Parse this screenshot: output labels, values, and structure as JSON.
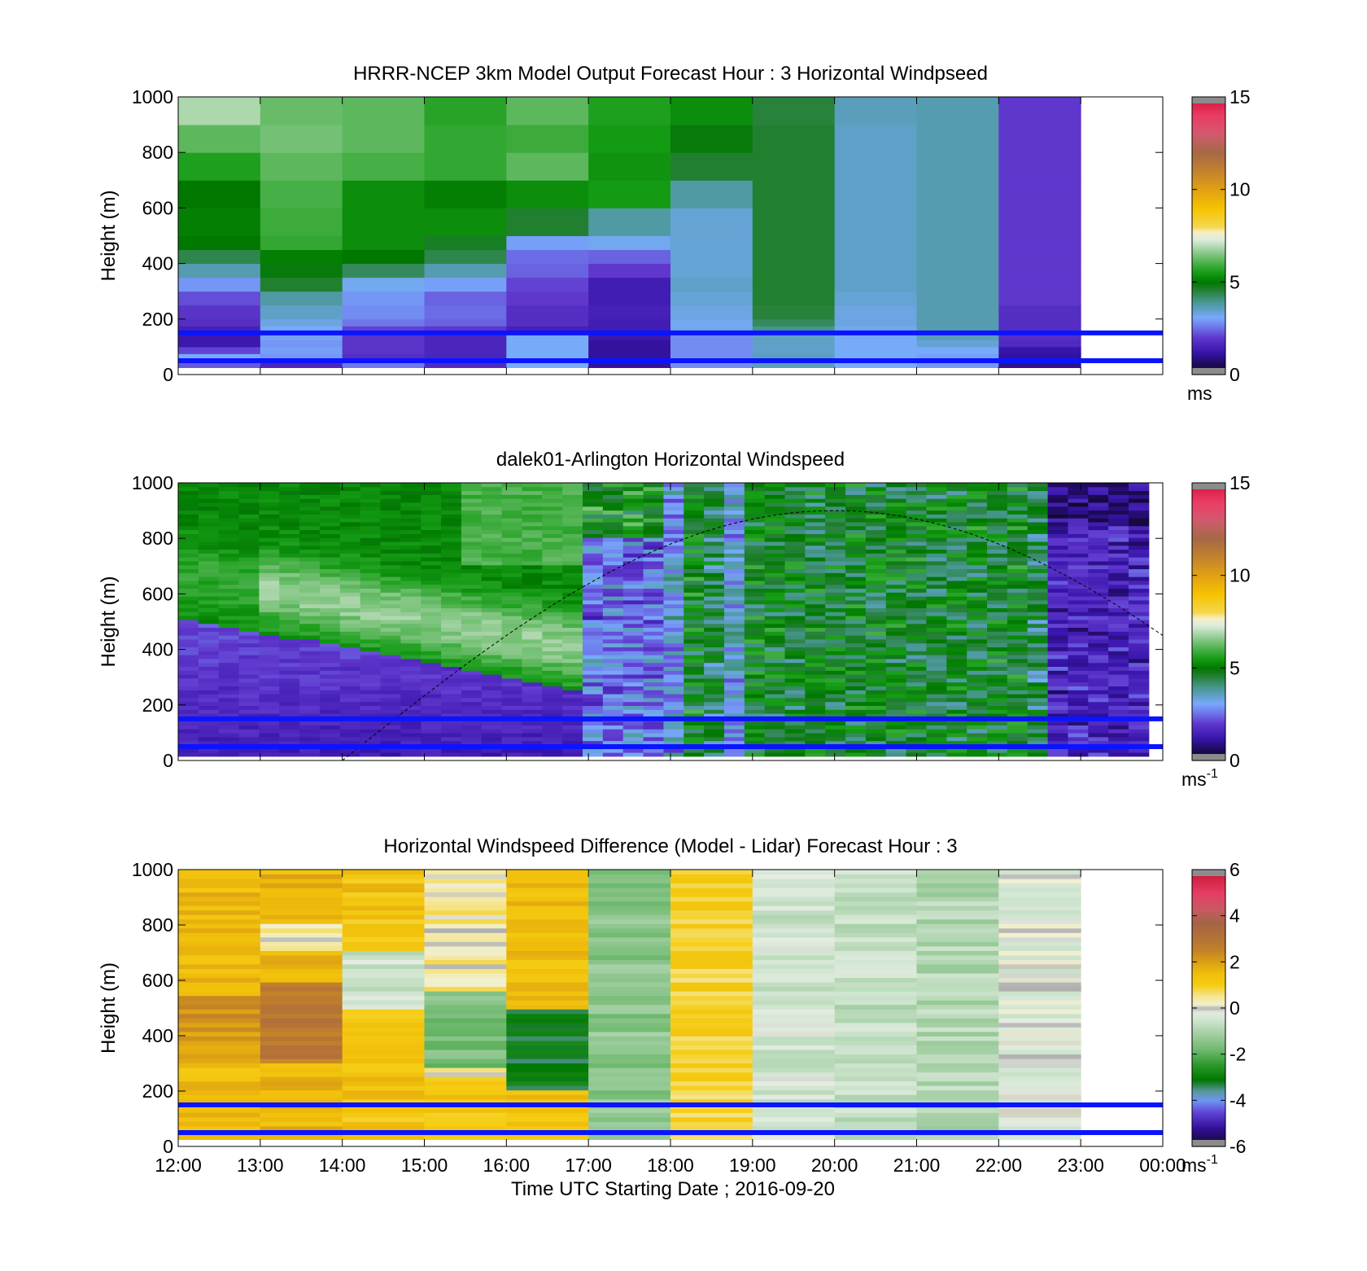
{
  "chart_data": [
    {
      "type": "heatmap",
      "title": "HRRR-NCEP 3km Model Output   Forecast Hour : 3 Horizontal Windpseed",
      "ylabel": "Height (m)",
      "ylim": [
        0,
        1000
      ],
      "yticks": [
        "0",
        "200",
        "400",
        "600",
        "800",
        "1000"
      ],
      "xlim": [
        0,
        12
      ],
      "xticklabels": [],
      "colorbar": {
        "min": 0,
        "max": 15,
        "ticks": [
          "0",
          "5",
          "10",
          "15"
        ],
        "unit": "ms",
        "unit_sup": "",
        "scheme": "speed"
      },
      "reference_lines_m": [
        50,
        150
      ],
      "row_edges_m": [
        25,
        50,
        75,
        100,
        125,
        150,
        175,
        200,
        250,
        300,
        350,
        400,
        450,
        500,
        600,
        700,
        800,
        900,
        1000
      ],
      "hours": [
        "12:00",
        "13:00",
        "14:00",
        "15:00",
        "16:00",
        "17:00",
        "18:00",
        "19:00",
        "20:00",
        "21:00",
        "22:00"
      ],
      "values_ms": [
        [
          2.3,
          1.6,
          2.6,
          1.7,
          3.1,
          1.1,
          2.8,
          3.6,
          3.1,
          2.9,
          1.0
        ],
        [
          3.1,
          2.9,
          1.8,
          1.6,
          3.1,
          1.1,
          2.8,
          3.6,
          3.1,
          3.0,
          1.1
        ],
        [
          2.1,
          3.0,
          1.9,
          1.6,
          3.1,
          1.1,
          2.8,
          3.5,
          3.1,
          3.1,
          1.2
        ],
        [
          1.3,
          2.9,
          1.9,
          1.6,
          3.1,
          1.1,
          2.8,
          3.5,
          3.1,
          3.4,
          1.7
        ],
        [
          1.3,
          3.0,
          1.9,
          1.6,
          3.1,
          1.3,
          2.8,
          3.5,
          3.1,
          3.6,
          1.8
        ],
        [
          1.5,
          3.1,
          2.1,
          2.0,
          1.5,
          1.4,
          3.2,
          4.0,
          3.2,
          3.7,
          1.8
        ],
        [
          1.8,
          3.3,
          2.6,
          2.4,
          1.8,
          1.4,
          3.2,
          4.3,
          3.3,
          3.7,
          1.8
        ],
        [
          1.9,
          3.5,
          2.8,
          2.5,
          1.8,
          1.5,
          3.3,
          4.5,
          3.3,
          3.7,
          1.8
        ],
        [
          2.2,
          3.8,
          2.9,
          2.4,
          2.0,
          1.4,
          3.4,
          4.6,
          3.4,
          3.7,
          2.0
        ],
        [
          2.9,
          4.6,
          3.2,
          3.0,
          2.1,
          1.4,
          3.5,
          4.6,
          3.5,
          3.7,
          2.0
        ],
        [
          3.7,
          4.9,
          4.3,
          3.7,
          2.4,
          2.0,
          3.4,
          4.6,
          3.5,
          3.7,
          2.0
        ],
        [
          4.4,
          5.1,
          5.0,
          4.4,
          2.5,
          2.4,
          3.4,
          4.6,
          3.5,
          3.7,
          2.0
        ],
        [
          5.0,
          5.8,
          5.3,
          4.7,
          3.0,
          3.2,
          3.4,
          4.6,
          3.5,
          3.7,
          2.0
        ],
        [
          5.1,
          5.9,
          5.3,
          5.3,
          4.6,
          3.8,
          3.4,
          4.6,
          3.5,
          3.7,
          2.0
        ],
        [
          5.0,
          6.0,
          5.3,
          5.1,
          5.3,
          5.5,
          3.8,
          4.6,
          3.5,
          3.7,
          2.0
        ],
        [
          5.6,
          6.2,
          6.0,
          5.8,
          6.2,
          5.4,
          4.6,
          4.6,
          3.5,
          3.7,
          2.0
        ],
        [
          6.2,
          6.4,
          6.2,
          5.8,
          5.9,
          5.5,
          4.9,
          4.6,
          3.5,
          3.7,
          2.0
        ],
        [
          6.9,
          6.3,
          6.2,
          5.7,
          6.2,
          5.6,
          5.3,
          4.5,
          3.6,
          3.7,
          2.0
        ]
      ]
    },
    {
      "type": "heatmap",
      "title": "dalek01-Arlington  Horizontal Windspeed",
      "ylabel": "Height (m)",
      "ylim": [
        0,
        1000
      ],
      "yticks": [
        "0",
        "200",
        "400",
        "600",
        "800",
        "1000"
      ],
      "xlim": [
        0,
        12
      ],
      "xticklabels": [],
      "colorbar": {
        "min": 0,
        "max": 15,
        "ticks": [
          "0",
          "5",
          "10",
          "15"
        ],
        "unit": "ms",
        "unit_sup": "-1",
        "scheme": "speed"
      },
      "reference_lines_m": [
        50,
        150
      ],
      "curve_peak_m": 900,
      "curve_peak_time": "20:00",
      "curve_zero_time": "14:00",
      "data_end_time": "23:50"
    },
    {
      "type": "heatmap",
      "title": "Horizontal Windspeed Difference (Model - Lidar) Forecast Hour : 3",
      "xlabel": "Time UTC  Starting Date ; 2016-09-20",
      "ylabel": "Height (m)",
      "ylim": [
        0,
        1000
      ],
      "yticks": [
        "0",
        "200",
        "400",
        "600",
        "800",
        "1000"
      ],
      "xlim": [
        0,
        12
      ],
      "xticklabels": [
        "12:00",
        "13:00",
        "14:00",
        "15:00",
        "16:00",
        "17:00",
        "18:00",
        "19:00",
        "20:00",
        "21:00",
        "22:00",
        "23:00",
        "00:00"
      ],
      "colorbar": {
        "min": -6,
        "max": 6,
        "ticks": [
          "-6",
          "-4",
          "-2",
          "0",
          "2",
          "4",
          "6"
        ],
        "unit": "ms",
        "unit_sup": "-1",
        "scheme": "diff"
      },
      "reference_lines_m": [
        50,
        150
      ],
      "row_edges_m": [
        25,
        50,
        75,
        100,
        125,
        150,
        175,
        200,
        250,
        300,
        350,
        400,
        450,
        500,
        600,
        700,
        800,
        900,
        1000
      ],
      "hours": [
        "12:00",
        "13:00",
        "14:00",
        "15:00",
        "16:00",
        "17:00",
        "18:00",
        "19:00",
        "20:00",
        "21:00",
        "22:00"
      ]
    }
  ]
}
